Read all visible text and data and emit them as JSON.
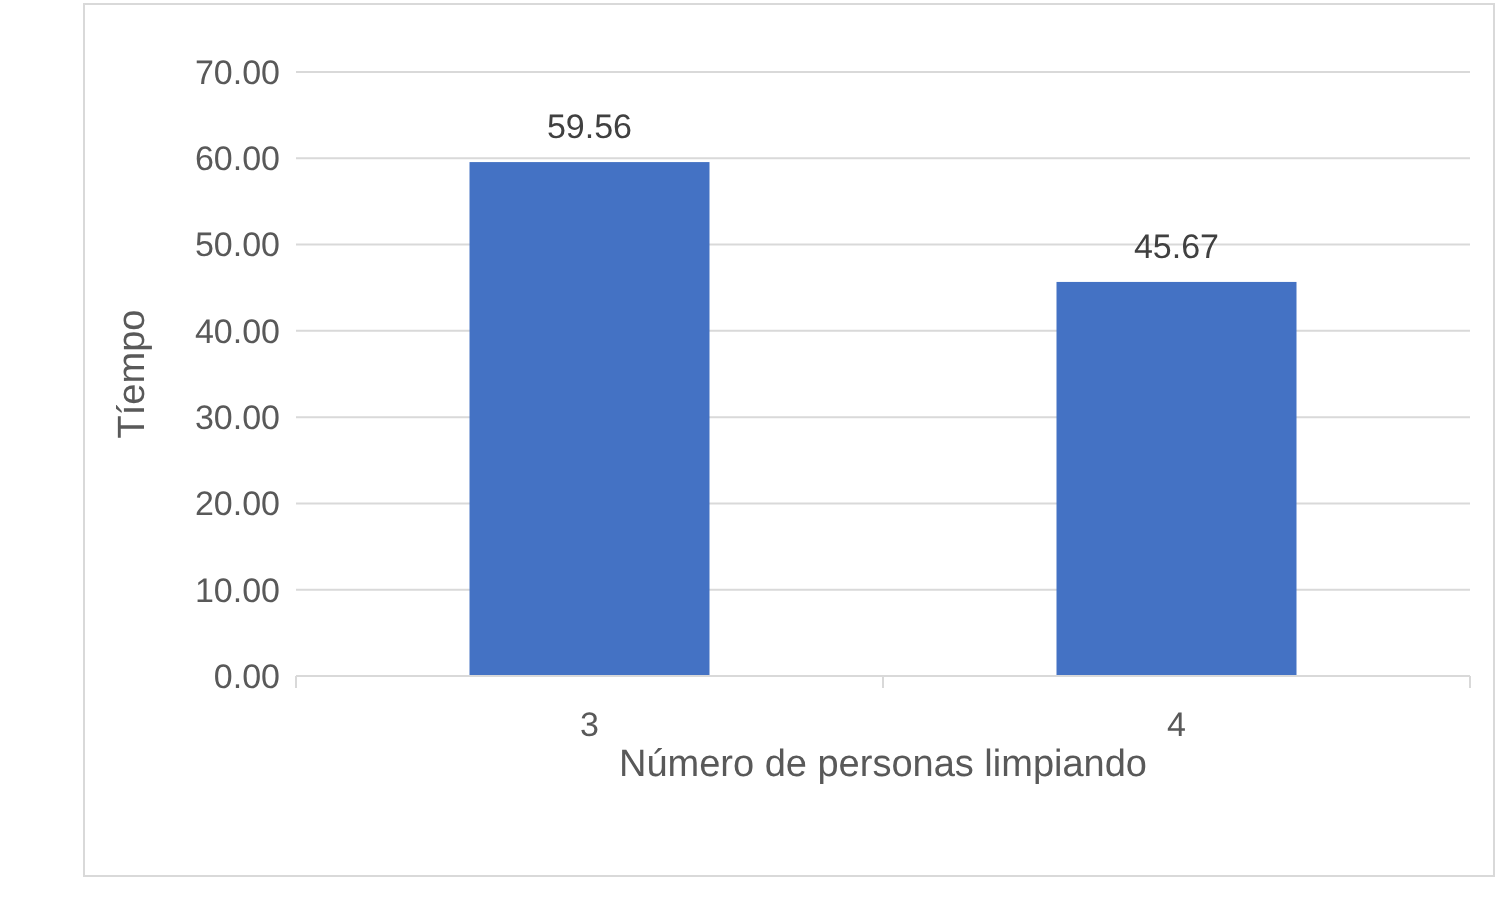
{
  "chart_data": {
    "type": "bar",
    "xlabel": "Número de personas limpiando",
    "ylabel": "Tíempo",
    "categories": [
      "3",
      "4"
    ],
    "values": [
      59.56,
      45.67
    ],
    "color": "#4472c4",
    "ylim": [
      0,
      70
    ],
    "yticks": [
      {
        "value": 0,
        "label": "0.00"
      },
      {
        "value": 10,
        "label": "10.00"
      },
      {
        "value": 20,
        "label": "20.00"
      },
      {
        "value": 30,
        "label": "30.00"
      },
      {
        "value": 40,
        "label": "40.00"
      },
      {
        "value": 50,
        "label": "50.00"
      },
      {
        "value": 60,
        "label": "60.00"
      },
      {
        "value": 70,
        "label": "70.00"
      }
    ],
    "grid": "y",
    "data_labels": true
  }
}
